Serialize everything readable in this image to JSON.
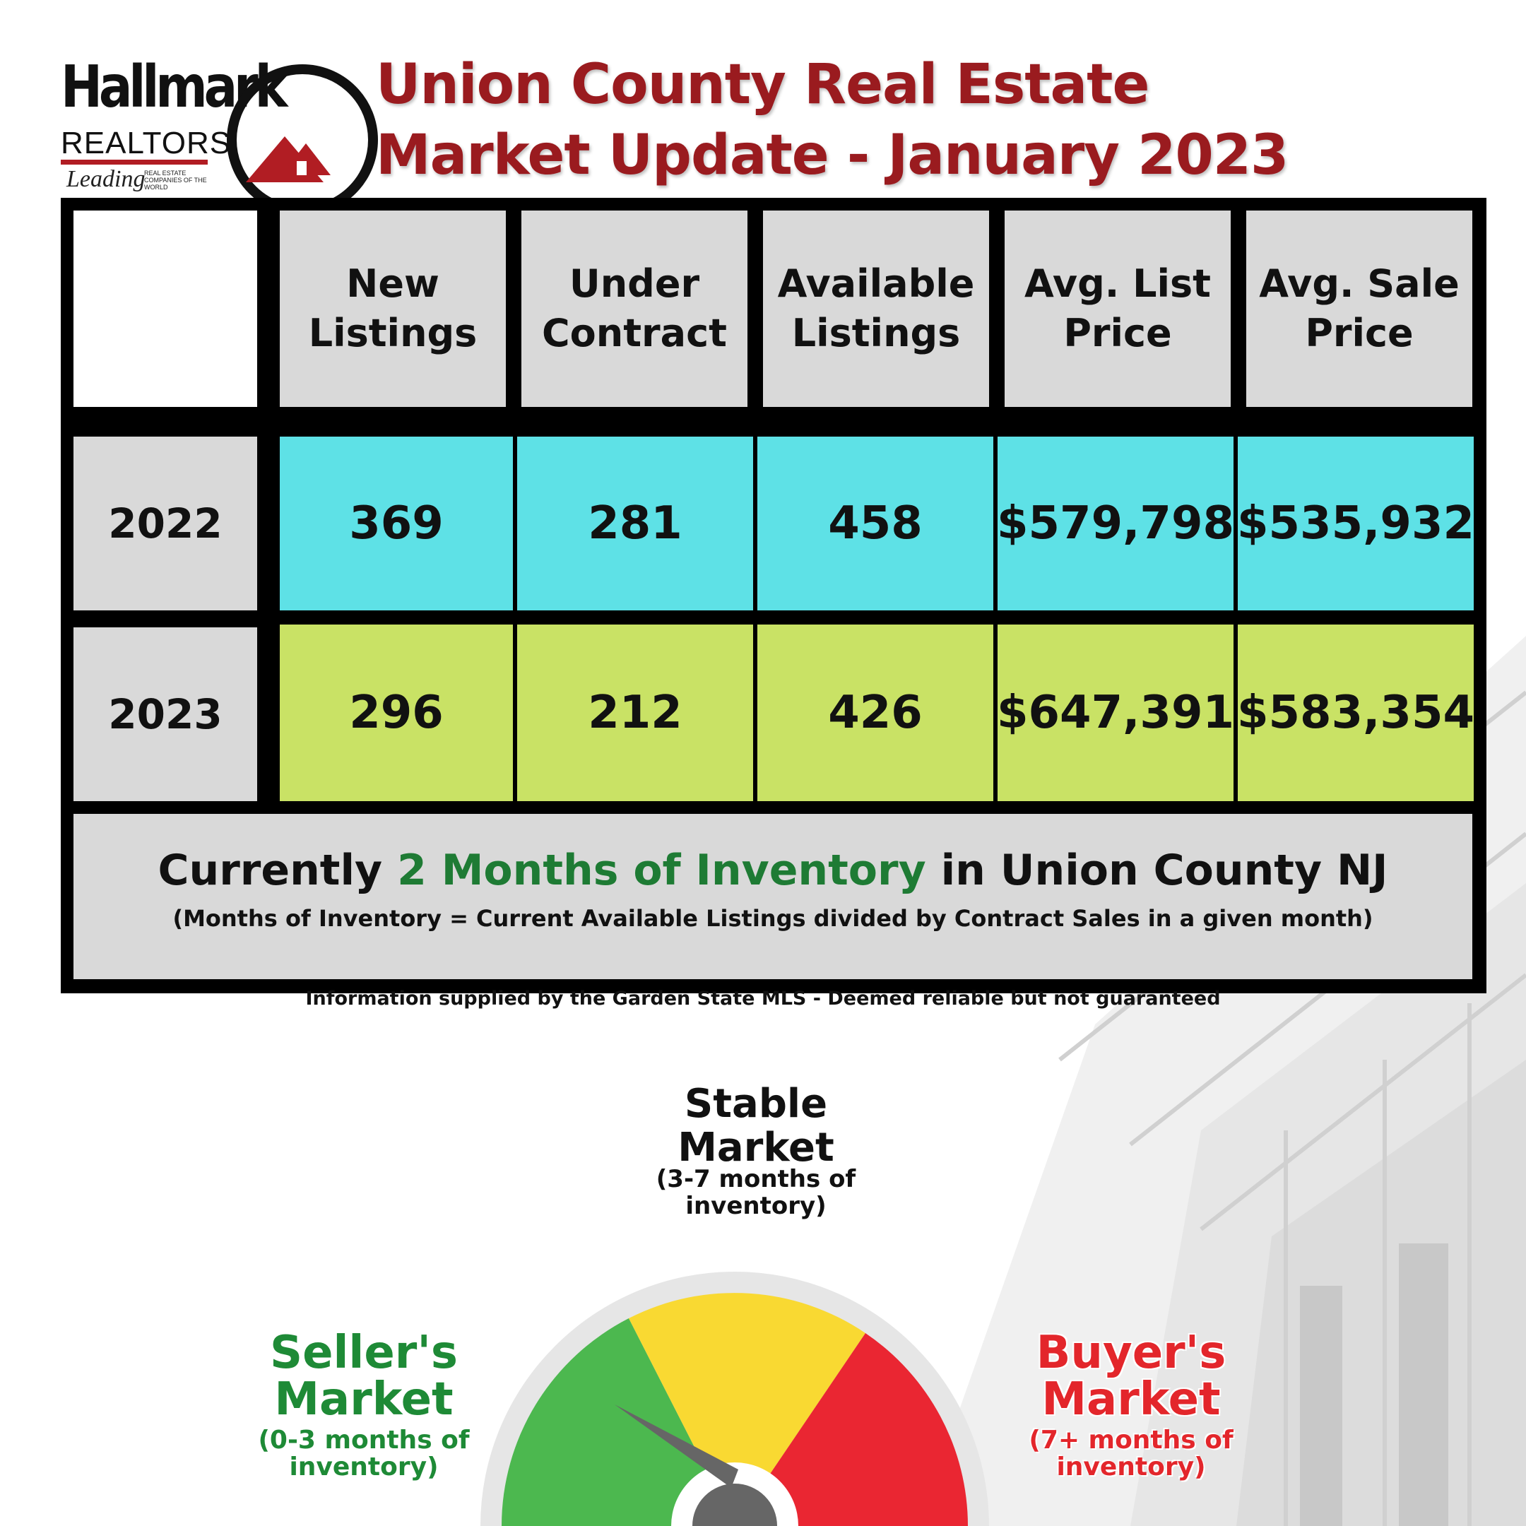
{
  "logo": {
    "wordmark": "Hallmark",
    "subtitle": "REALTORS",
    "leading": "Leading",
    "lrec": "REAL ESTATE COMPANIES OF THE WORLD"
  },
  "title": {
    "line1": "Union County Real Estate",
    "line2": "Market Update - January 2023"
  },
  "table": {
    "headers": [
      "New Listings",
      "Under Contract",
      "Available Listings",
      "Avg. List Price",
      "Avg. Sale Price"
    ],
    "rows": [
      {
        "year": "2022",
        "values": [
          "369",
          "281",
          "458",
          "$579,798",
          "$535,932"
        ]
      },
      {
        "year": "2023",
        "values": [
          "296",
          "212",
          "426",
          "$647,391",
          "$583,354"
        ]
      }
    ]
  },
  "summary": {
    "prefix": "Currently ",
    "highlight": "2 Months of Inventory",
    "suffix": " in Union County NJ",
    "note": "(Months of Inventory = Current Available Listings divided by Contract Sales in a given month)"
  },
  "source": "Information supplied by the Garden State MLS - Deemed reliable but not guaranteed",
  "gauge": {
    "stable_title": "Stable Market",
    "stable_sub": "(3-7 months of inventory)",
    "seller_title": "Seller's Market",
    "seller_sub": "(0-3 months of inventory)",
    "buyer_title": "Buyer's Market",
    "buyer_sub": "(7+ months of inventory)",
    "colors": {
      "seller": "#4cb84f",
      "stable": "#f9d932",
      "buyer": "#ea2632",
      "needle": "#666666"
    }
  }
}
